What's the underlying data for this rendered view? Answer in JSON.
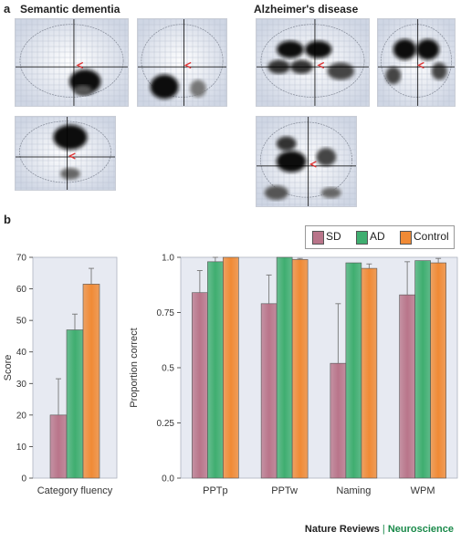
{
  "figure": {
    "panel_a_label": "a",
    "panel_b_label": "b",
    "sd_title": "Semantic dementia",
    "ad_title": "Alzheimer's disease",
    "footer_journal": "Nature Reviews",
    "footer_separator": "|",
    "footer_section": "Neuroscience"
  },
  "legend": [
    {
      "name": "SD",
      "color": "#b9758a"
    },
    {
      "name": "AD",
      "color": "#3fae70"
    },
    {
      "name": "Control",
      "color": "#f08a35"
    }
  ],
  "chart_data": [
    {
      "type": "bar",
      "ylabel": "Score",
      "ylim": [
        0,
        70
      ],
      "yticks": [
        "0",
        "10",
        "20",
        "30",
        "40",
        "50",
        "60",
        "70"
      ],
      "categories": [
        "Category fluency"
      ],
      "series": [
        {
          "name": "SD",
          "values": [
            20
          ],
          "error_upper": [
            31.5
          ]
        },
        {
          "name": "AD",
          "values": [
            47
          ],
          "error_upper": [
            52
          ]
        },
        {
          "name": "Control",
          "values": [
            61.5
          ],
          "error_upper": [
            66.5
          ]
        }
      ]
    },
    {
      "type": "bar",
      "ylabel": "Proportion correct",
      "ylim": [
        0,
        1.0
      ],
      "yticks": [
        "0.0",
        "0.25",
        "0.5",
        "0.75",
        "1.0"
      ],
      "categories": [
        "PPTp",
        "PPTw",
        "Naming",
        "WPM"
      ],
      "series": [
        {
          "name": "SD",
          "values": [
            0.84,
            0.79,
            0.52,
            0.83
          ],
          "error_upper": [
            0.94,
            0.92,
            0.79,
            0.98
          ]
        },
        {
          "name": "AD",
          "values": [
            0.98,
            1.0,
            0.975,
            0.985
          ],
          "error_upper": [
            1.0,
            1.0,
            0.975,
            0.985
          ]
        },
        {
          "name": "Control",
          "values": [
            1.0,
            0.99,
            0.95,
            0.975
          ],
          "error_upper": [
            1.0,
            0.995,
            0.97,
            0.995
          ]
        }
      ]
    }
  ]
}
